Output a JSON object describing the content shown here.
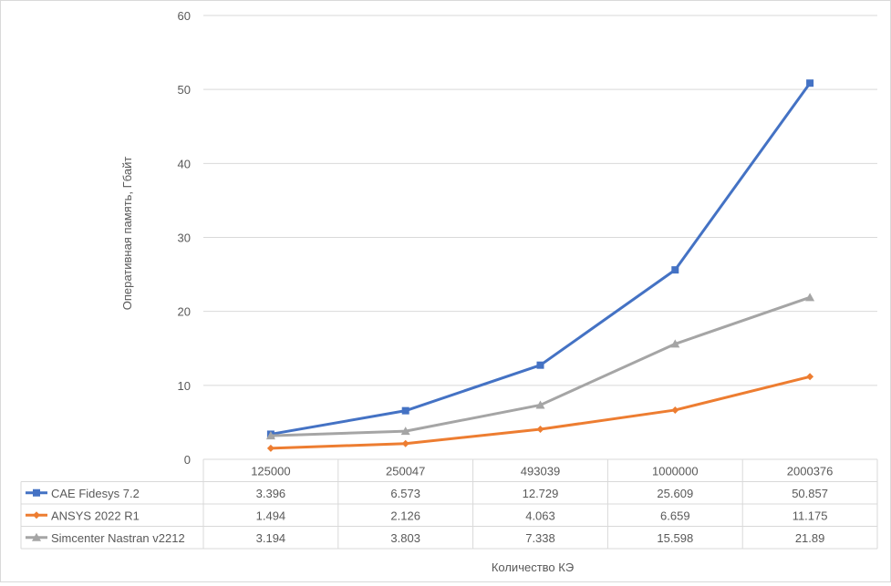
{
  "chart_data": {
    "type": "line",
    "title": "",
    "xlabel": "Количество КЭ",
    "ylabel": "Оперативная память, Гбайт",
    "ylim": [
      0,
      60
    ],
    "yticks": [
      0,
      10,
      20,
      30,
      40,
      50,
      60
    ],
    "grid": true,
    "legend": "data-table-left",
    "categories": [
      "125000",
      "250047",
      "493039",
      "1000000",
      "2000376"
    ],
    "series": [
      {
        "name": "CAE Fidesys 7.2",
        "color": "#4472C4",
        "marker": "square",
        "values": [
          3.396,
          6.573,
          12.729,
          25.609,
          50.857
        ],
        "labels": [
          "3.396",
          "6.573",
          "12.729",
          "25.609",
          "50.857"
        ]
      },
      {
        "name": "ANSYS 2022 R1",
        "color": "#ED7D31",
        "marker": "diamond",
        "values": [
          1.494,
          2.126,
          4.063,
          6.659,
          11.175
        ],
        "labels": [
          "1.494",
          "2.126",
          "4.063",
          "6.659",
          "11.175"
        ]
      },
      {
        "name": "Simcenter Nastran v2212",
        "color": "#A5A5A5",
        "marker": "triangle",
        "values": [
          3.194,
          3.803,
          7.338,
          15.598,
          21.89
        ],
        "labels": [
          "3.194",
          "3.803",
          "7.338",
          "15.598",
          "21.89"
        ]
      }
    ]
  }
}
